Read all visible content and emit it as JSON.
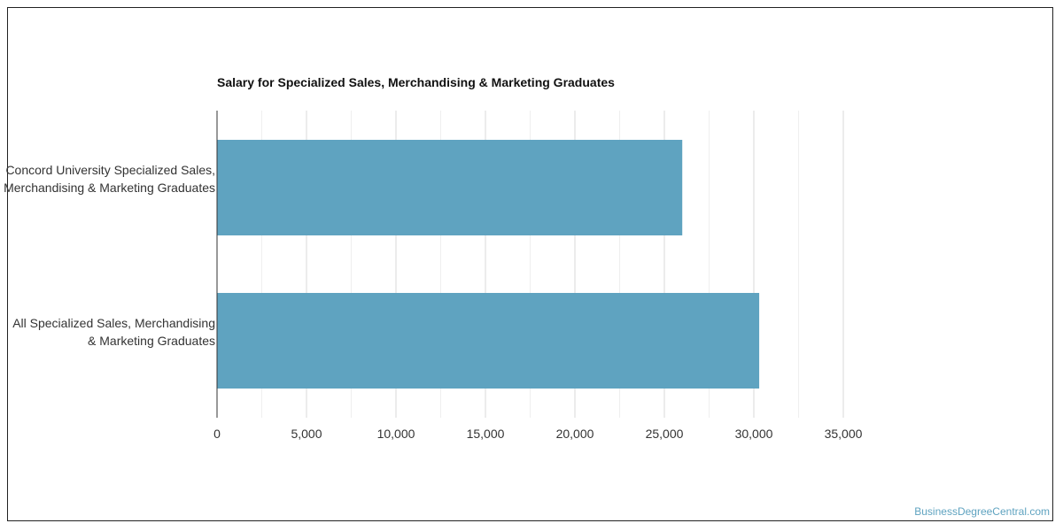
{
  "chart_data": {
    "type": "bar",
    "orientation": "horizontal",
    "title": "Salary for Specialized Sales, Merchandising & Marketing Graduates",
    "categories": [
      "Concord University Specialized Sales, Merchandising & Marketing Graduates",
      "All Specialized Sales, Merchandising & Marketing Graduates"
    ],
    "values": [
      26000,
      30300
    ],
    "xlim": [
      0,
      35000
    ],
    "x_ticks": [
      "0",
      "5,000",
      "10,000",
      "15,000",
      "20,000",
      "25,000",
      "30,000",
      "35,000"
    ],
    "xlabel": "",
    "ylabel": "",
    "grid": true,
    "bar_color": "#5fa3c0"
  },
  "footer": {
    "credit": "BusinessDegreeCentral.com"
  }
}
